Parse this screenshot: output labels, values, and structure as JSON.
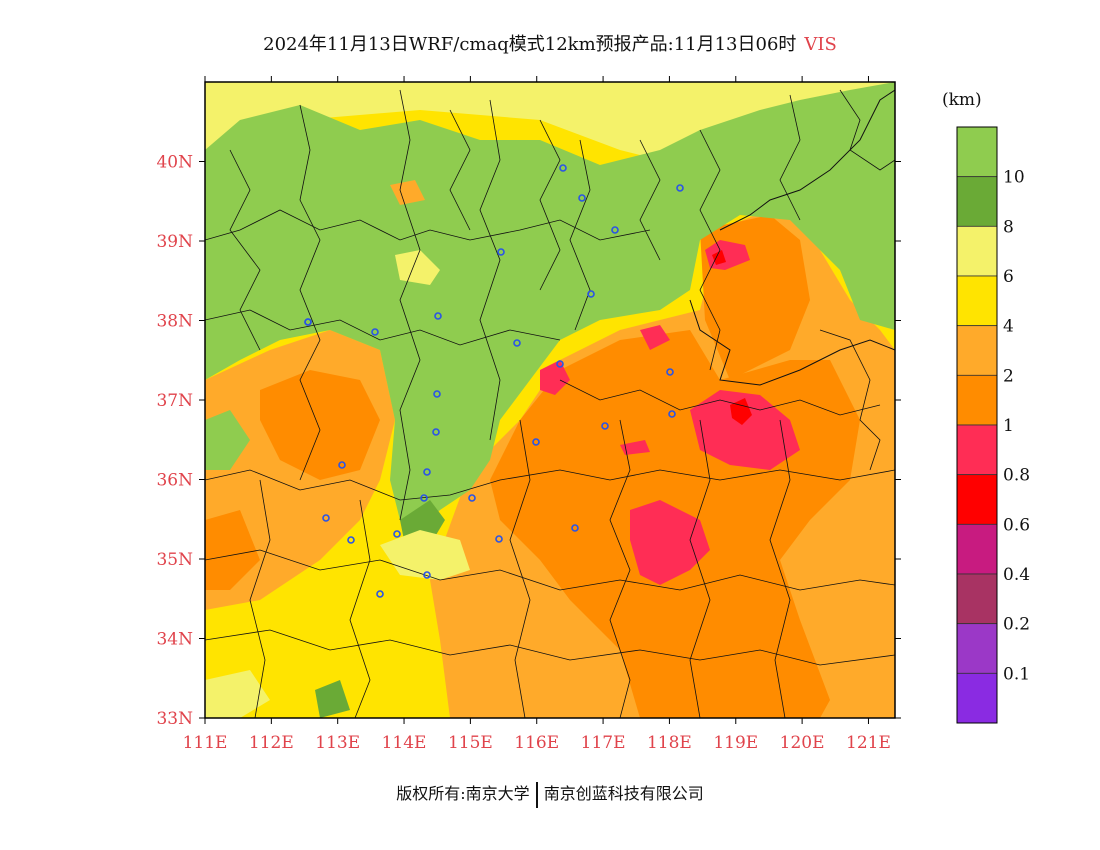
{
  "header": {
    "title": "2024年11月13日WRF/cmaq模式12km预报产品:11月13日06时",
    "variable": "VIS"
  },
  "map": {
    "lat_ticks": [
      "40N",
      "39N",
      "38N",
      "37N",
      "36N",
      "35N",
      "34N",
      "33N"
    ],
    "lon_ticks": [
      "111E",
      "112E",
      "113E",
      "114E",
      "115E",
      "116E",
      "117E",
      "118E",
      "119E",
      "120E",
      "121E"
    ],
    "extent": {
      "lon_min": 111,
      "lon_max": 121.4,
      "lat_min": 33,
      "lat_max": 41
    },
    "station_count": 29
  },
  "colorbar": {
    "unit": "(km)",
    "levels": [
      {
        "label": "10",
        "color": "#8fcc4f"
      },
      {
        "label": "8",
        "color": "#6aaa36"
      },
      {
        "label": "6",
        "color": "#f4f26a"
      },
      {
        "label": "4",
        "color": "#ffe400"
      },
      {
        "label": "2",
        "color": "#ffaa2a"
      },
      {
        "label": "1",
        "color": "#ff8c00"
      },
      {
        "label": "0.8",
        "color": "#ff2d55"
      },
      {
        "label": "0.6",
        "color": "#ff0000"
      },
      {
        "label": "0.4",
        "color": "#c81b80"
      },
      {
        "label": "0.2",
        "color": "#a83363"
      },
      {
        "label": "0.1",
        "color": "#9b38c7"
      },
      {
        "label": "",
        "color": "#8a2be2"
      }
    ]
  },
  "footer": {
    "copyright": "版权所有:南京大学",
    "company": "南京创蓝科技有限公司"
  }
}
